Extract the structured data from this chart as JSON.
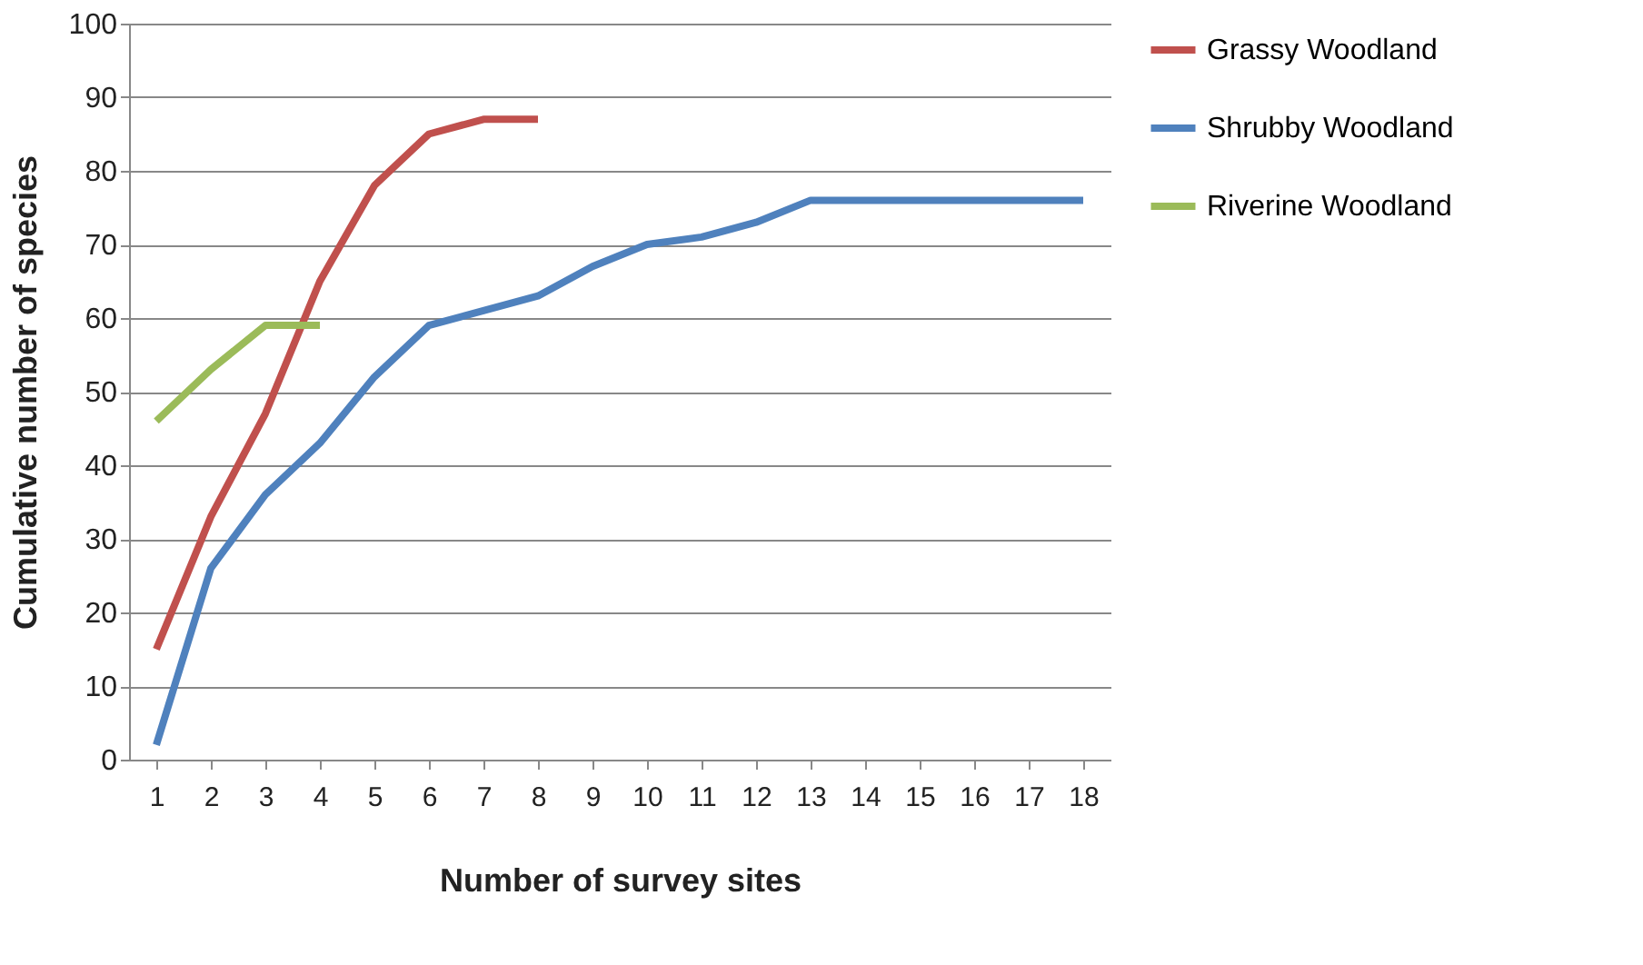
{
  "chart_data": {
    "type": "line",
    "xlabel": "Number of survey sites",
    "ylabel": "Cumulative number of species",
    "x": [
      1,
      2,
      3,
      4,
      5,
      6,
      7,
      8,
      9,
      10,
      11,
      12,
      13,
      14,
      15,
      16,
      17,
      18
    ],
    "series": [
      {
        "name": "Grassy Woodland",
        "color": "#c0504d",
        "values": [
          15,
          33,
          47,
          65,
          78,
          85,
          87,
          87,
          null,
          null,
          null,
          null,
          null,
          null,
          null,
          null,
          null,
          null
        ]
      },
      {
        "name": "Shrubby Woodland",
        "color": "#4f81bd",
        "values": [
          2,
          26,
          36,
          43,
          52,
          59,
          61,
          63,
          67,
          70,
          71,
          73,
          76,
          76,
          76,
          76,
          76,
          76
        ]
      },
      {
        "name": "Riverine Woodland",
        "color": "#9bbb59",
        "values": [
          46,
          53,
          59,
          59,
          null,
          null,
          null,
          null,
          null,
          null,
          null,
          null,
          null,
          null,
          null,
          null,
          null,
          null
        ]
      }
    ],
    "xlim": [
      0.5,
      18.5
    ],
    "xticks": [
      1,
      2,
      3,
      4,
      5,
      6,
      7,
      8,
      9,
      10,
      11,
      12,
      13,
      14,
      15,
      16,
      17,
      18
    ],
    "ylim": [
      0,
      100
    ],
    "yticks": [
      0,
      10,
      20,
      30,
      40,
      50,
      60,
      70,
      80,
      90,
      100
    ],
    "grid": "y",
    "legend": "right",
    "marker": "none",
    "line_style": "solid"
  }
}
